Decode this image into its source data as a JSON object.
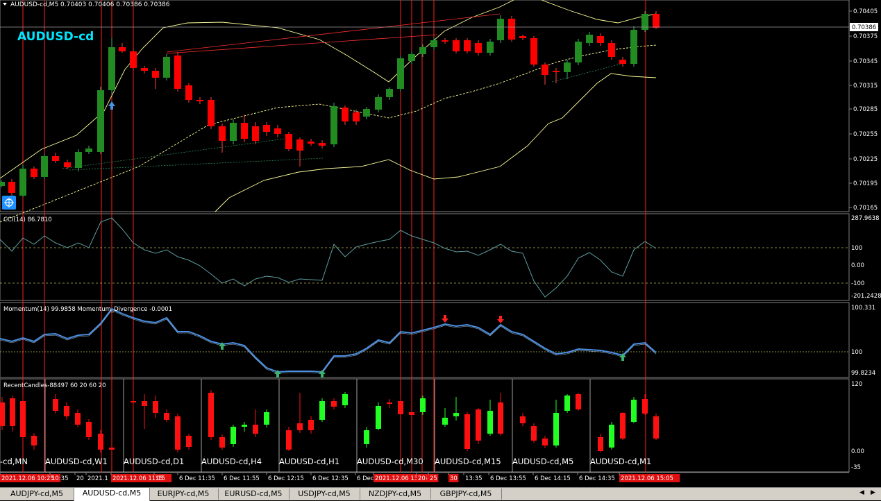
{
  "window": {
    "title": "AUDUSD-cd,M5",
    "quote": "0.70403 0.70406 0.70386 0.70386",
    "symbol_label": "AUDUSD-cd"
  },
  "colors": {
    "background": "#000000",
    "bull": "#228B22",
    "bear": "#FF0000",
    "grid": "#808080",
    "band": "#FFFF99",
    "cci": "#5F9EA0",
    "momentum": "#4A90E2",
    "vline": "#FF2020"
  },
  "price_axis": {
    "labels": [
      "0.70405",
      "0.70375",
      "0.70345",
      "0.70315",
      "0.70285",
      "0.70255",
      "0.70225",
      "0.70195",
      "0.70165"
    ],
    "current": "0.70386"
  },
  "indicators": {
    "cci": {
      "header": "CCI(14) 86.7810",
      "levels": [
        "287.9638",
        "100",
        "0.00",
        "-100",
        "-201.2428"
      ]
    },
    "momentum": {
      "header": "Momentum(14) 99.9858  Momentum_Divergence -0.0001",
      "levels": [
        "100.331",
        "100",
        "99.8234"
      ]
    },
    "recent": {
      "header": "RecentCandles-88497 60 20 60 20",
      "levels": [
        "120",
        "0.00",
        "-35"
      ],
      "panel_labels": [
        "-cd,MN",
        "AUDUSD-cd,W1",
        "AUDUSD-cd,D1",
        "AUDUSD-cd,H4",
        "AUDUSD-cd,H1",
        "AUDUSD-cd,M30",
        "AUDUSD-cd,M15",
        "AUDUSD-cd,M5",
        "AUDUSD-cd,M1"
      ]
    }
  },
  "time_axis": {
    "labels": [
      {
        "text": "2021.12.06 10:25",
        "highlight": true
      },
      {
        "text": "10:35",
        "highlight": false
      },
      {
        "text": "20",
        "highlight": false
      },
      {
        "text": "2021.1",
        "highlight": false
      },
      {
        "text": "2021.12.06 11:15",
        "highlight": true
      },
      {
        "text": "15",
        "highlight": false
      },
      {
        "text": "6 Dec 11:35",
        "highlight": false
      },
      {
        "text": "6 Dec 11:55",
        "highlight": false
      },
      {
        "text": "6 Dec 12:15",
        "highlight": false
      },
      {
        "text": "6 Dec 12:35",
        "highlight": false
      },
      {
        "text": "6 Dec",
        "highlight": false
      },
      {
        "text": "2021.12.06 13:15",
        "highlight": true
      },
      {
        "text": "20",
        "highlight": true
      },
      {
        "text": "25",
        "highlight": true
      },
      {
        "text": "30",
        "highlight": true
      },
      {
        "text": "13:35",
        "highlight": false
      },
      {
        "text": "6 Dec 13:55",
        "highlight": false
      },
      {
        "text": "6 Dec 14:15",
        "highlight": false
      },
      {
        "text": "6 Dec 14:35",
        "highlight": false
      },
      {
        "text": "2021.12.06 15:05",
        "highlight": true
      }
    ]
  },
  "tabs": [
    {
      "label": "AUDJPY-cd,M5",
      "active": false
    },
    {
      "label": "AUDUSD-cd,M5",
      "active": true
    },
    {
      "label": "EURJPY-cd,M5",
      "active": false
    },
    {
      "label": "EURUSD-cd,M5",
      "active": false
    },
    {
      "label": "USDJPY-cd,M5",
      "active": false
    },
    {
      "label": "NZDJPY-cd,M5",
      "active": false
    },
    {
      "label": "GBPJPY-cd,M5",
      "active": false
    }
  ],
  "icons": {
    "crosshair": "crosshair-icon",
    "arrow_up": "arrow-up-icon",
    "arrow_down": "arrow-down-icon"
  }
}
